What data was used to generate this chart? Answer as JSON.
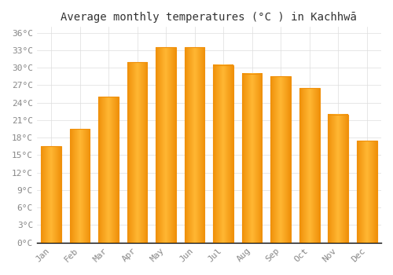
{
  "title": "Average monthly temperatures (°C ) in Kachhwā",
  "months": [
    "Jan",
    "Feb",
    "Mar",
    "Apr",
    "May",
    "Jun",
    "Jul",
    "Aug",
    "Sep",
    "Oct",
    "Nov",
    "Dec"
  ],
  "values": [
    16.5,
    19.5,
    25.0,
    31.0,
    33.5,
    33.5,
    30.5,
    29.0,
    28.5,
    26.5,
    22.0,
    17.5
  ],
  "bar_color_center": "#FFB733",
  "bar_color_edge": "#F0900A",
  "background_color": "#FFFFFF",
  "ytick_labels": [
    "0°C",
    "3°C",
    "6°C",
    "9°C",
    "12°C",
    "15°C",
    "18°C",
    "21°C",
    "24°C",
    "27°C",
    "30°C",
    "33°C",
    "36°C"
  ],
  "ytick_values": [
    0,
    3,
    6,
    9,
    12,
    15,
    18,
    21,
    24,
    27,
    30,
    33,
    36
  ],
  "ylim": [
    0,
    37
  ],
  "grid_color": "#DDDDDD",
  "tick_label_color": "#888888",
  "title_color": "#333333",
  "title_fontsize": 10,
  "tick_fontsize": 8,
  "font_family": "monospace",
  "bar_width": 0.7
}
